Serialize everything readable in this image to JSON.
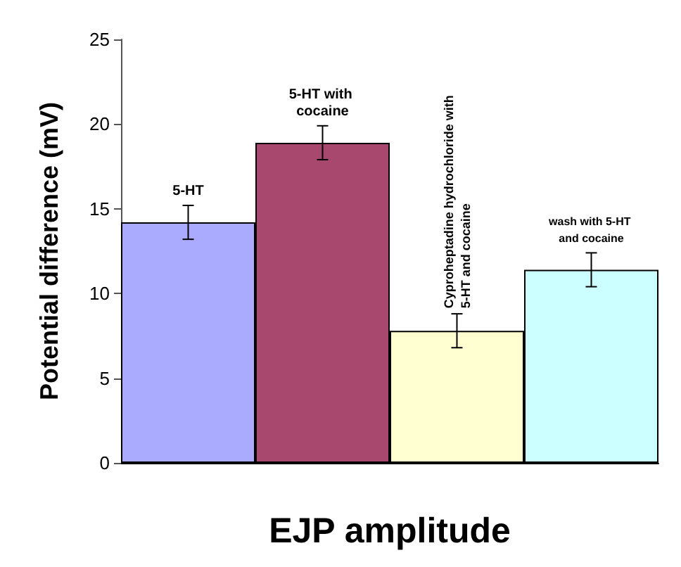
{
  "chart_data": {
    "type": "bar",
    "xlabel": "EJP amplitude",
    "ylabel": "Potential difference (mV)",
    "categories": [
      "5-HT",
      "5-HT with cocaine",
      "Cyproheptadine hydrochloride with 5-HT and cocaine",
      "wash with 5-HT and cocaine"
    ],
    "values": [
      14.2,
      18.9,
      7.8,
      11.4
    ],
    "colors": [
      "#aaaaff",
      "#a8486f",
      "#ffffd2",
      "#ccffff"
    ],
    "errors": [
      1.0,
      1.0,
      1.0,
      1.0
    ],
    "ylim": [
      0,
      25
    ],
    "yticks": [
      0,
      5,
      10,
      15,
      20,
      25
    ],
    "grid": false
  }
}
